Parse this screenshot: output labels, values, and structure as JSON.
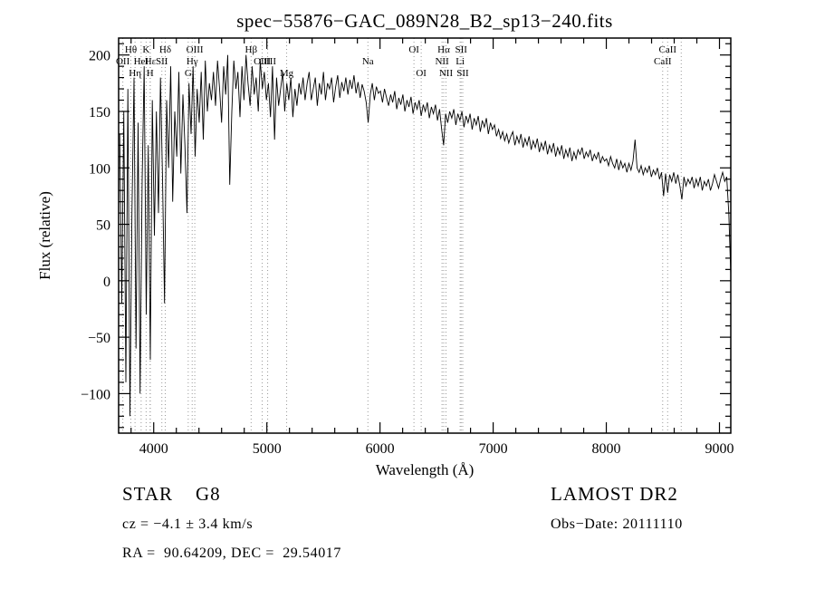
{
  "chart_data": {
    "type": "line",
    "title": "spec−55876−GAC_089N28_B2_sp13−240.fits",
    "xlabel": "Wavelength (Å)",
    "ylabel": "Flux (relative)",
    "xlim": [
      3690,
      9100
    ],
    "ylim": [
      -135,
      215
    ],
    "x_ticks": [
      4000,
      5000,
      6000,
      7000,
      8000,
      9000
    ],
    "x_minor_step": 200,
    "y_ticks": [
      -100,
      -50,
      0,
      50,
      100,
      150,
      200
    ],
    "y_tick_labels": [
      "−100",
      "−50",
      "0",
      "50",
      "100",
      "150",
      "200"
    ],
    "y_minor_step": 10,
    "line_color": "#000000",
    "marker_line_color": "#999999",
    "background": "#ffffff",
    "x_start": 3700,
    "x_step": 18,
    "flux": [
      130,
      -20,
      150,
      -90,
      170,
      -120,
      60,
      180,
      -60,
      140,
      -100,
      90,
      190,
      -30,
      120,
      -70,
      160,
      40,
      150,
      60,
      180,
      90,
      -20,
      160,
      100,
      190,
      70,
      150,
      110,
      185,
      95,
      165,
      120,
      60,
      175,
      130,
      190,
      110,
      170,
      140,
      185,
      125,
      195,
      150,
      175,
      160,
      185,
      155,
      195,
      170,
      140,
      190,
      165,
      200,
      85,
      150,
      195,
      170,
      185,
      145,
      190,
      160,
      200,
      175,
      155,
      190,
      165,
      180,
      150,
      195,
      170,
      185,
      160,
      175,
      145,
      190,
      125,
      180,
      155,
      170,
      185,
      150,
      175,
      160,
      180,
      145,
      170,
      155,
      175,
      165,
      180,
      160,
      175,
      185,
      160,
      170,
      180,
      155,
      175,
      165,
      185,
      160,
      175,
      170,
      180,
      158,
      172,
      182,
      162,
      176,
      168,
      180,
      165,
      178,
      170,
      182,
      166,
      176,
      162,
      174,
      168,
      158,
      140,
      165,
      175,
      160,
      172,
      166,
      168,
      158,
      170,
      162,
      155,
      165,
      158,
      168,
      152,
      162,
      156,
      165,
      150,
      160,
      154,
      163,
      148,
      158,
      152,
      160,
      146,
      156,
      150,
      158,
      144,
      154,
      148,
      156,
      142,
      152,
      135,
      120,
      148,
      140,
      150,
      144,
      152,
      138,
      148,
      142,
      150,
      136,
      146,
      140,
      148,
      134,
      144,
      138,
      146,
      132,
      142,
      136,
      144,
      130,
      140,
      134,
      138,
      128,
      134,
      126,
      132,
      124,
      130,
      122,
      128,
      132,
      120,
      128,
      122,
      130,
      118,
      126,
      120,
      128,
      116,
      124,
      118,
      126,
      114,
      122,
      116,
      124,
      112,
      120,
      114,
      122,
      110,
      118,
      112,
      120,
      108,
      116,
      110,
      118,
      106,
      114,
      108,
      116,
      112,
      118,
      108,
      114,
      110,
      116,
      106,
      112,
      108,
      114,
      104,
      110,
      106,
      108,
      102,
      110,
      104,
      100,
      108,
      98,
      106,
      100,
      104,
      96,
      104,
      98,
      106,
      125,
      100,
      96,
      102,
      94,
      100,
      96,
      102,
      92,
      98,
      94,
      100,
      90,
      96,
      75,
      95,
      78,
      94,
      88,
      96,
      86,
      94,
      84,
      72,
      92,
      84,
      90,
      86,
      92,
      82,
      90,
      84,
      92,
      80,
      88,
      84,
      90,
      80,
      86,
      94,
      88,
      82,
      90,
      96,
      88,
      92,
      60,
      5
    ],
    "spectral_lines": [
      {
        "wl": 3727,
        "label": "OII",
        "row": 1
      },
      {
        "wl": 3798,
        "label": "Hθ",
        "row": 0
      },
      {
        "wl": 3835,
        "label": "Hη",
        "row": 2
      },
      {
        "wl": 3889,
        "label": "HeI",
        "row": 1
      },
      {
        "wl": 3933,
        "label": "K",
        "row": 0
      },
      {
        "wl": 3968,
        "label": "H",
        "row": 2
      },
      {
        "wl": 3970,
        "label": "Hε",
        "row": 1
      },
      {
        "wl": 4072,
        "label": "SII",
        "row": 1
      },
      {
        "wl": 4102,
        "label": "Hδ",
        "row": 0
      },
      {
        "wl": 4305,
        "label": "G",
        "row": 2
      },
      {
        "wl": 4340,
        "label": "Hγ",
        "row": 1
      },
      {
        "wl": 4363,
        "label": "OIII",
        "row": 0
      },
      {
        "wl": 4861,
        "label": "Hβ",
        "row": 0
      },
      {
        "wl": 4959,
        "label": "OIII",
        "row": 1
      },
      {
        "wl": 5007,
        "label": "OIII",
        "row": 1
      },
      {
        "wl": 5175,
        "label": "Mg",
        "row": 2
      },
      {
        "wl": 5893,
        "label": "Na",
        "row": 1
      },
      {
        "wl": 6300,
        "label": "OI",
        "row": 0
      },
      {
        "wl": 6364,
        "label": "OI",
        "row": 2
      },
      {
        "wl": 6548,
        "label": "NII",
        "row": 1
      },
      {
        "wl": 6563,
        "label": "Hα",
        "row": 0
      },
      {
        "wl": 6583,
        "label": "NII",
        "row": 2
      },
      {
        "wl": 6708,
        "label": "Li",
        "row": 1
      },
      {
        "wl": 6717,
        "label": "SII",
        "row": 0
      },
      {
        "wl": 6731,
        "label": "SII",
        "row": 2
      },
      {
        "wl": 8498,
        "label": "CaII",
        "row": 1
      },
      {
        "wl": 8542,
        "label": "CaII",
        "row": 0
      },
      {
        "wl": 8662,
        "label": "",
        "row": 0
      }
    ]
  },
  "annotations": {
    "class_line": "STAR    G8",
    "survey": "LAMOST DR2",
    "cz_line": "cz = −4.1 ± 3.4 km/s",
    "obs_date": "Obs−Date: 20111110",
    "radec_line": "RA =  90.64209, DEC =  29.54017"
  }
}
